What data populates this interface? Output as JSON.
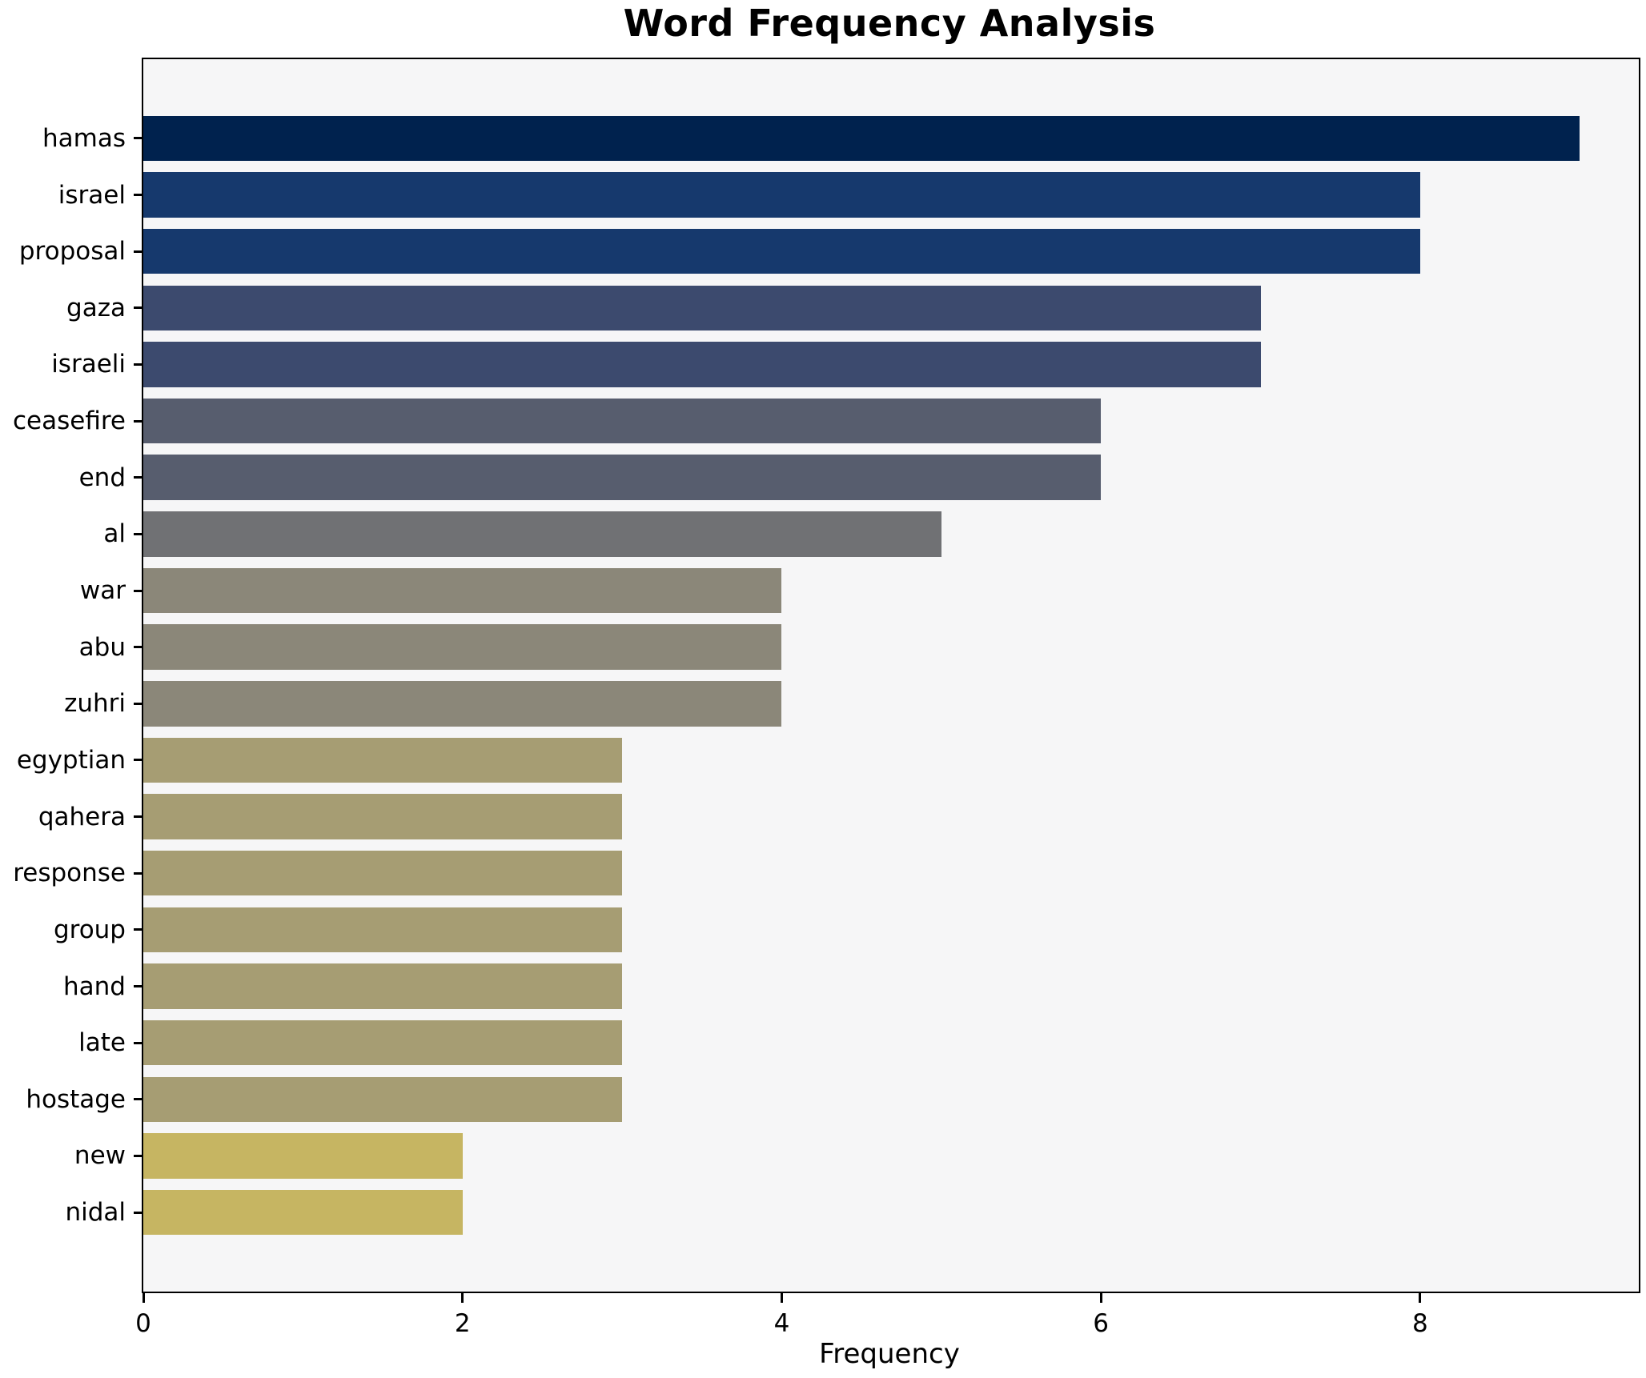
{
  "chart_data": {
    "type": "bar",
    "orientation": "horizontal",
    "title": "Word Frequency Analysis",
    "xlabel": "Frequency",
    "ylabel": "",
    "categories": [
      "hamas",
      "israel",
      "proposal",
      "gaza",
      "israeli",
      "ceasefire",
      "end",
      "al",
      "war",
      "abu",
      "zuhri",
      "egyptian",
      "qahera",
      "response",
      "group",
      "hand",
      "late",
      "hostage",
      "new",
      "nidal"
    ],
    "values": [
      9,
      8,
      8,
      7,
      7,
      6,
      6,
      5,
      4,
      4,
      4,
      3,
      3,
      3,
      3,
      3,
      3,
      3,
      2,
      2
    ],
    "bar_colors": [
      "#00224e",
      "#16396d",
      "#16396d",
      "#3c4a6e",
      "#3c4a6e",
      "#575d6e",
      "#575d6e",
      "#707174",
      "#8b8779",
      "#8b8779",
      "#8b8779",
      "#a69d73",
      "#a69d73",
      "#a69d73",
      "#a69d73",
      "#a69d73",
      "#a69d73",
      "#a69d73",
      "#c6b562",
      "#c6b562"
    ],
    "xticks": [
      0,
      2,
      4,
      6,
      8
    ],
    "xlim": [
      0,
      9.37
    ],
    "grid": false,
    "legend": "none",
    "plot_background": "#f6f6f7",
    "spine_color": "#000000",
    "bar_height_fraction": 0.8,
    "colormap": "cividis"
  }
}
